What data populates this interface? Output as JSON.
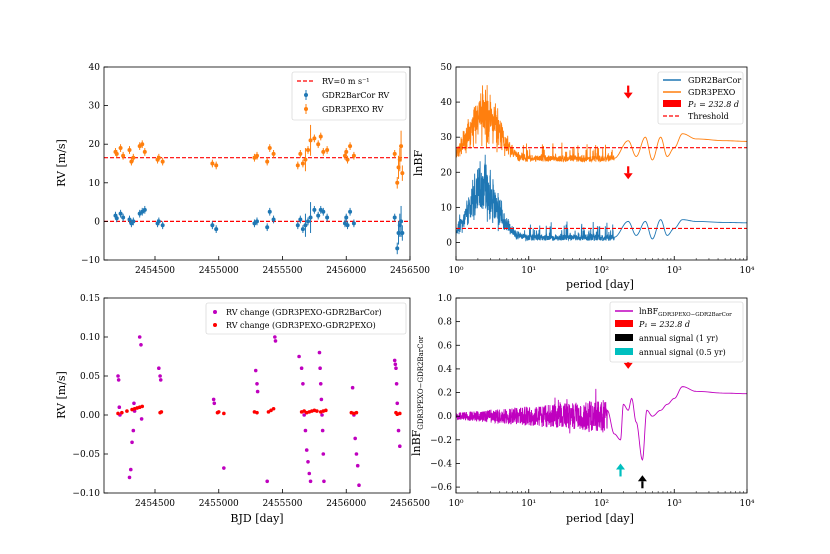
{
  "colors": {
    "blue": "#1f77b4",
    "orange": "#ff7f0e",
    "red": "#ff0000",
    "magenta": "#bf00bf",
    "black": "#000000",
    "cyan": "#00bfbf"
  },
  "chart_data": [
    {
      "id": "rv",
      "type": "scatter",
      "xlabel": "",
      "ylabel": "RV [m/s]",
      "xlim": [
        2454100,
        2456500
      ],
      "ylim": [
        -10,
        40
      ],
      "xticks": [
        2454500,
        2455000,
        2455500,
        2456000,
        2456500
      ],
      "xtick_labels": [
        "2454500",
        "2455000",
        "2455500",
        "2456000",
        "2456500"
      ],
      "yticks": [
        -10,
        0,
        10,
        20,
        30,
        40
      ],
      "ytick_labels": [
        "−10",
        "0",
        "10",
        "20",
        "30",
        "40"
      ],
      "legend": {
        "position": "top-right",
        "entries": [
          "RV=0 m s⁻¹",
          "GDR2BarCor RV",
          "GDR3PEXO RV"
        ]
      },
      "hlines": [
        {
          "y": 0,
          "color": "#ff0000",
          "style": "dashed"
        },
        {
          "y": 16.5,
          "color": "#ff0000",
          "style": "dashed"
        }
      ],
      "epochs": [
        2454190,
        2454200,
        2454230,
        2454250,
        2454300,
        2454315,
        2454330,
        2454380,
        2454400,
        2454420,
        2454520,
        2454530,
        2454560,
        2454950,
        2454980,
        2455280,
        2455300,
        2455380,
        2455400,
        2455430,
        2455620,
        2455640,
        2455660,
        2455680,
        2455700,
        2455720,
        2455750,
        2455780,
        2455800,
        2455820,
        2455850,
        2455990,
        2456000,
        2456010,
        2456030,
        2456060,
        2456380,
        2456400,
        2456410,
        2456420,
        2456430,
        2456440
      ],
      "series": [
        {
          "name": "GDR2BarCor RV",
          "color": "#1f77b4",
          "values": [
            1.5,
            0.8,
            2.0,
            1.0,
            0.5,
            -0.5,
            0.0,
            2.0,
            2.5,
            3.0,
            -0.5,
            0.0,
            -1.0,
            -1.0,
            -2.0,
            -0.5,
            0.0,
            -1.5,
            2.5,
            0.5,
            -1.0,
            0.5,
            -2.0,
            -1.0,
            0.0,
            1.0,
            3.0,
            1.5,
            3.0,
            2.5,
            1.0,
            -0.5,
            1.0,
            -1.0,
            2.5,
            -0.5,
            1.0,
            -7.0,
            -3.0,
            -1.0,
            0.0,
            -3.0
          ],
          "errors": [
            1.0,
            1.0,
            1.0,
            1.0,
            1.0,
            1.0,
            1.0,
            1.0,
            1.0,
            1.0,
            1.0,
            1.0,
            1.0,
            1.0,
            1.0,
            1.0,
            1.0,
            1.0,
            1.0,
            1.0,
            1.0,
            1.0,
            1.0,
            3.0,
            1.0,
            4.0,
            1.0,
            1.0,
            1.0,
            1.0,
            1.0,
            1.0,
            1.0,
            1.0,
            1.0,
            1.0,
            1.0,
            1.5,
            3.0,
            3.0,
            4.0,
            2.0
          ]
        },
        {
          "name": "GDR3PEXO RV",
          "color": "#ff7f0e",
          "values": [
            18.0,
            17.5,
            19.0,
            17.0,
            18.5,
            15.5,
            16.5,
            19.5,
            20.0,
            18.0,
            16.0,
            16.5,
            15.5,
            15.0,
            14.5,
            16.5,
            17.0,
            15.5,
            19.0,
            17.5,
            14.5,
            17.5,
            15.0,
            16.0,
            18.5,
            21.0,
            21.5,
            20.0,
            22.0,
            18.0,
            18.5,
            17.0,
            18.0,
            16.0,
            19.5,
            17.0,
            17.5,
            10.0,
            14.0,
            16.0,
            19.5,
            12.5
          ],
          "errors": [
            1.0,
            1.0,
            1.0,
            1.0,
            1.0,
            1.0,
            1.0,
            1.0,
            1.0,
            1.0,
            1.0,
            1.0,
            1.0,
            1.0,
            1.0,
            1.0,
            1.0,
            1.0,
            1.0,
            1.0,
            1.0,
            1.0,
            1.0,
            3.0,
            1.0,
            4.0,
            1.0,
            1.0,
            1.0,
            1.0,
            1.0,
            1.0,
            1.0,
            1.0,
            1.0,
            1.0,
            1.0,
            1.5,
            3.0,
            3.0,
            4.0,
            2.0
          ]
        }
      ]
    },
    {
      "id": "bf",
      "type": "line",
      "xscale": "log",
      "xlabel": "period [day]",
      "ylabel": "lnBF",
      "xlim": [
        1,
        10000
      ],
      "ylim": [
        -5,
        50
      ],
      "xticks": [
        1,
        10,
        100,
        1000,
        10000
      ],
      "xtick_labels": [
        "10⁰",
        "10¹",
        "10²",
        "10³",
        "10⁴"
      ],
      "yticks": [
        0,
        10,
        20,
        30,
        40,
        50
      ],
      "ytick_labels": [
        "0",
        "10",
        "20",
        "30",
        "40",
        "50"
      ],
      "legend": {
        "position": "top-right",
        "entries": [
          "GDR2BarCor",
          "GDR3PEXO",
          "P₁ = 232.8 d",
          "Threshold"
        ]
      },
      "hlines": [
        {
          "y": 4,
          "color": "#ff0000",
          "style": "dashed"
        },
        {
          "y": 27,
          "color": "#ff0000",
          "style": "dashed"
        }
      ],
      "markers": [
        {
          "x": 232.8,
          "y": 18,
          "color": "#ff0000",
          "direction": "down"
        },
        {
          "x": 232.8,
          "y": 41,
          "color": "#ff0000",
          "direction": "down"
        }
      ],
      "series": [
        {
          "name": "GDR2BarCor",
          "color": "#1f77b4",
          "baseline": 0.5,
          "peaks": [
            {
              "x": 2.5,
              "y": 16
            },
            {
              "x": 2.0,
              "y": 12
            },
            {
              "x": 3.0,
              "y": 11
            },
            {
              "x": 1.6,
              "y": 9
            },
            {
              "x": 4.0,
              "y": 6
            }
          ],
          "tail": [
            [
              150,
              1.5
            ],
            [
              232.8,
              6
            ],
            [
              300,
              2
            ],
            [
              400,
              6
            ],
            [
              500,
              1
            ],
            [
              650,
              6.5
            ],
            [
              800,
              2
            ],
            [
              1000,
              4
            ],
            [
              1300,
              6.5
            ],
            [
              2000,
              6.0
            ],
            [
              5000,
              5.7
            ],
            [
              10000,
              5.6
            ]
          ]
        },
        {
          "name": "GDR3PEXO",
          "color": "#ff7f0e",
          "baseline": 23,
          "peaks": [
            {
              "x": 2.5,
              "y": 39
            },
            {
              "x": 2.0,
              "y": 33
            },
            {
              "x": 3.0,
              "y": 33
            },
            {
              "x": 1.6,
              "y": 30
            },
            {
              "x": 4.0,
              "y": 29
            }
          ],
          "tail": [
            [
              150,
              24
            ],
            [
              232.8,
              29
            ],
            [
              300,
              24.5
            ],
            [
              400,
              30
            ],
            [
              500,
              23.5
            ],
            [
              650,
              30
            ],
            [
              800,
              24.5
            ],
            [
              1000,
              27
            ],
            [
              1300,
              31
            ],
            [
              2000,
              29.5
            ],
            [
              5000,
              29
            ],
            [
              10000,
              28.8
            ]
          ]
        }
      ]
    },
    {
      "id": "rvchange",
      "type": "scatter",
      "xlabel": "BJD [day]",
      "ylabel": "RV [m/s]",
      "xlim": [
        2454100,
        2456500
      ],
      "ylim": [
        -0.1,
        0.15
      ],
      "xticks": [
        2454500,
        2455000,
        2455500,
        2456000,
        2456500
      ],
      "xtick_labels": [
        "2454500",
        "2455000",
        "2455500",
        "2456000",
        "2456500"
      ],
      "yticks": [
        -0.1,
        -0.05,
        0.0,
        0.05,
        0.1,
        0.15
      ],
      "ytick_labels": [
        "−0.10",
        "−0.05",
        "0.00",
        "0.05",
        "0.10",
        "0.15"
      ],
      "legend": {
        "position": "top-right",
        "entries": [
          "RV change (GDR3PEXO-GDR2BarCor)",
          "RV change (GDR3PEXO-GDR2PEXO)"
        ]
      },
      "series": [
        {
          "name": "RV change (GDR3PEXO-GDR2BarCor)",
          "color": "#bf00bf",
          "x": [
            2454210,
            2454215,
            2454220,
            2454225,
            2454300,
            2454310,
            2454320,
            2454330,
            2454335,
            2454340,
            2454380,
            2454390,
            2454395,
            2454530,
            2454540,
            2454545,
            2454960,
            2454965,
            2455040,
            2455290,
            2455300,
            2455305,
            2455380,
            2455440,
            2455445,
            2455630,
            2455650,
            2455660,
            2455670,
            2455680,
            2455690,
            2455700,
            2455710,
            2455720,
            2455790,
            2455795,
            2455800,
            2455805,
            2455810,
            2455815,
            2455820,
            2455825,
            2456050,
            2456060,
            2456070,
            2456080,
            2456090,
            2456100,
            2456380,
            2456385,
            2456390,
            2456395,
            2456400,
            2456410,
            2456420
          ],
          "y": [
            0.05,
            0.045,
            0.01,
            0.0,
            -0.08,
            -0.07,
            -0.035,
            -0.02,
            0.015,
            0.005,
            0.1,
            0.09,
            -0.005,
            0.06,
            0.05,
            0.045,
            0.02,
            0.015,
            -0.068,
            0.057,
            0.04,
            0.03,
            -0.085,
            0.1,
            0.095,
            0.075,
            0.06,
            0.04,
            0.0,
            -0.02,
            -0.045,
            -0.06,
            -0.075,
            -0.085,
            0.08,
            0.06,
            0.04,
            0.02,
            0.0,
            -0.02,
            -0.05,
            -0.085,
            0.035,
            0.0,
            -0.03,
            -0.05,
            -0.065,
            -0.09,
            0.07,
            0.065,
            0.06,
            0.04,
            0.015,
            -0.02,
            -0.04
          ]
        },
        {
          "name": "RV change (GDR3PEXO-GDR2PEXO)",
          "color": "#ff0000",
          "x": [
            2454210,
            2454240,
            2454280,
            2454320,
            2454340,
            2454360,
            2454380,
            2454400,
            2454540,
            2454550,
            2454990,
            2455000,
            2455040,
            2455280,
            2455300,
            2455390,
            2455410,
            2455430,
            2455650,
            2455670,
            2455690,
            2455710,
            2455730,
            2455750,
            2455770,
            2455800,
            2455820,
            2455840,
            2456040,
            2456060,
            2456080,
            2456390,
            2456400,
            2456420
          ],
          "y": [
            0.002,
            0.003,
            0.005,
            0.007,
            0.008,
            0.009,
            0.01,
            0.011,
            0.003,
            0.004,
            0.003,
            0.004,
            0.002,
            0.004,
            0.003,
            0.004,
            0.006,
            0.008,
            0.004,
            0.005,
            0.003,
            0.004,
            0.005,
            0.006,
            0.005,
            0.004,
            0.005,
            0.006,
            0.003,
            0.002,
            0.003,
            0.003,
            0.001,
            0.002
          ]
        }
      ]
    },
    {
      "id": "dbf",
      "type": "line",
      "xscale": "log",
      "xlabel": "period [day]",
      "ylabel": "lnBF",
      "ylabel_sub": "GDR3PEXO−GDR2BarCor",
      "xlim": [
        1,
        10000
      ],
      "ylim": [
        -0.65,
        1.0
      ],
      "xticks": [
        1,
        10,
        100,
        1000,
        10000
      ],
      "xtick_labels": [
        "10⁰",
        "10¹",
        "10²",
        "10³",
        "10⁴"
      ],
      "yticks": [
        -0.6,
        -0.4,
        -0.2,
        0.0,
        0.2,
        0.4,
        0.6,
        0.8,
        1.0
      ],
      "ytick_labels": [
        "−0.6",
        "−0.4",
        "−0.2",
        "0.0",
        "0.2",
        "0.4",
        "0.6",
        "0.8",
        "1.0"
      ],
      "legend": {
        "position": "top-right",
        "entries": [
          "lnBF",
          "P₁ = 232.8 d",
          "annual signal (1 yr)",
          "annual signal (0.5 yr)"
        ],
        "first_sub": "GDR3PEXO−GDR2BarCor"
      },
      "markers": [
        {
          "x": 232.8,
          "y": 0.4,
          "color": "#ff0000",
          "direction": "down"
        },
        {
          "x": 365,
          "y": -0.5,
          "color": "#000000",
          "direction": "up"
        },
        {
          "x": 182.5,
          "y": -0.4,
          "color": "#00bfbf",
          "direction": "up"
        }
      ],
      "series": [
        {
          "name": "lnBF GDR3PEXO−GDR2BarCor",
          "color": "#bf00bf",
          "tail": [
            [
              120,
              0.05
            ],
            [
              150,
              -0.15
            ],
            [
              182.5,
              -0.2
            ],
            [
              200,
              0.1
            ],
            [
              232.8,
              0.05
            ],
            [
              260,
              0.15
            ],
            [
              300,
              -0.05
            ],
            [
              365,
              -0.37
            ],
            [
              420,
              0.05
            ],
            [
              500,
              0.0
            ],
            [
              650,
              0.05
            ],
            [
              800,
              0.1
            ],
            [
              1000,
              0.15
            ],
            [
              1300,
              0.25
            ],
            [
              2000,
              0.21
            ],
            [
              5000,
              0.195
            ],
            [
              10000,
              0.19
            ]
          ]
        }
      ]
    }
  ]
}
